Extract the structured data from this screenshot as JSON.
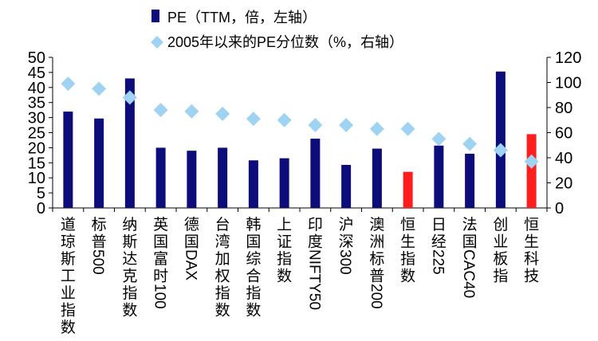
{
  "chart_data": {
    "type": "bar",
    "categories": [
      "道琼斯工业指数",
      "标普500",
      "纳斯达克指数",
      "英国富时100",
      "德国DAX",
      "台湾加权指数",
      "韩国综合指数",
      "上证指数",
      "印度NIFTY50",
      "沪深300",
      "澳洲标普200",
      "恒生指数",
      "日经225",
      "法国CAC40",
      "创业板指",
      "恒生科技"
    ],
    "series": [
      {
        "name": "PE（TTM，倍，左轴）",
        "type": "bar",
        "axis": "left",
        "color": "#0c0c7a",
        "highlight_color": "#ff1e1e",
        "highlight_categories": [
          "恒生指数",
          "恒生科技"
        ],
        "values": [
          32,
          29.7,
          43,
          20,
          19,
          20,
          15.8,
          16.5,
          23,
          14.3,
          19.7,
          12,
          20.7,
          18,
          45.3,
          24.5
        ]
      },
      {
        "name": "2005年以来的PE分位数（%，右轴）",
        "type": "scatter",
        "marker": "diamond",
        "axis": "right",
        "color": "#9fd3f4",
        "values": [
          99,
          95,
          88,
          78,
          77,
          75,
          71,
          70,
          66,
          66,
          63,
          63,
          55,
          51,
          46,
          37
        ]
      }
    ],
    "y_left": {
      "min": 0,
      "max": 50,
      "ticks": [
        0,
        5,
        10,
        15,
        20,
        25,
        30,
        35,
        40,
        45,
        50
      ]
    },
    "y_right": {
      "min": 0,
      "max": 120,
      "ticks": [
        0,
        20,
        40,
        60,
        80,
        100,
        120
      ]
    },
    "grid": false,
    "legend_position": "top-center"
  }
}
